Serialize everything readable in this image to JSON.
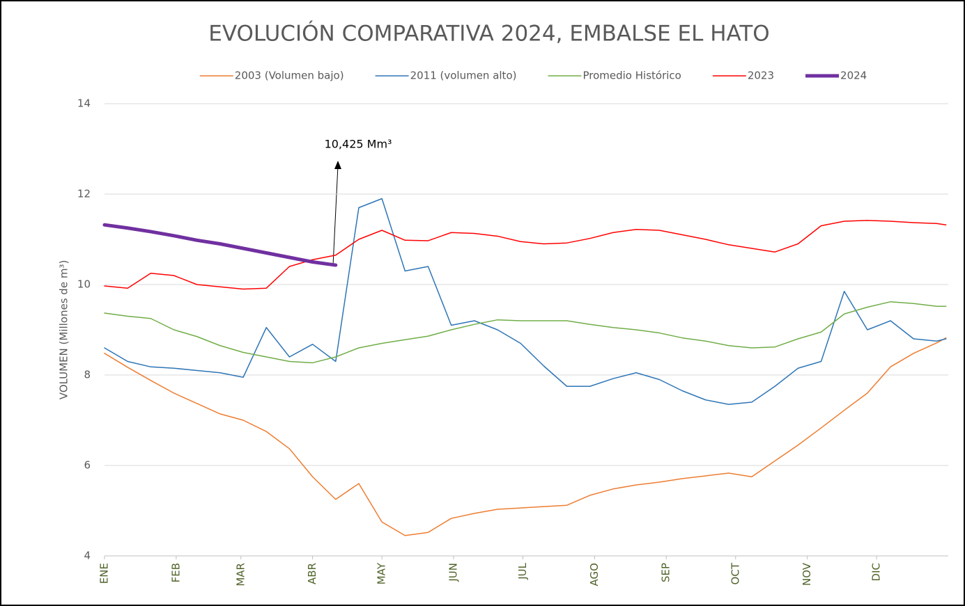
{
  "chart_data": {
    "type": "line",
    "title": "EVOLUCIÓN COMPARATIVA 2024, EMBALSE EL HATO",
    "y_label": "VOLUMEN (Millones de m³)",
    "annotation": "10,425 Mm³",
    "legend": "top",
    "grid": true,
    "xlim": [
      1,
      366
    ],
    "ylim": [
      4,
      14
    ],
    "yticks": [
      4,
      6,
      8,
      10,
      12,
      14
    ],
    "xticks": [
      {
        "value": 1,
        "label": "ENE"
      },
      {
        "value": 32,
        "label": "FEB"
      },
      {
        "value": 60,
        "label": "MAR"
      },
      {
        "value": 91,
        "label": "ABR"
      },
      {
        "value": 121,
        "label": "MAY"
      },
      {
        "value": 152,
        "label": "JUN"
      },
      {
        "value": 182,
        "label": "JUL"
      },
      {
        "value": 213,
        "label": "AGO"
      },
      {
        "value": 244,
        "label": "SEP"
      },
      {
        "value": 274,
        "label": "OCT"
      },
      {
        "value": 305,
        "label": "NOV"
      },
      {
        "value": 335,
        "label": "DIC"
      }
    ],
    "x": [
      1,
      11,
      21,
      31,
      41,
      51,
      61,
      71,
      81,
      91,
      101,
      111,
      121,
      131,
      141,
      151,
      161,
      171,
      181,
      191,
      201,
      211,
      221,
      231,
      241,
      251,
      261,
      271,
      281,
      291,
      301,
      311,
      321,
      331,
      341,
      351,
      361,
      365
    ],
    "series": [
      {
        "name": "2003 (Volumen bajo)",
        "color": "#ed7d31",
        "line_width": 1.5,
        "values": [
          8.48,
          8.17,
          7.88,
          7.6,
          7.37,
          7.14,
          7.0,
          6.75,
          6.37,
          5.75,
          5.25,
          5.6,
          4.75,
          4.45,
          4.52,
          4.83,
          4.94,
          5.03,
          5.06,
          5.09,
          5.12,
          5.34,
          5.48,
          5.57,
          5.63,
          5.71,
          5.77,
          5.83,
          5.75,
          6.1,
          6.45,
          6.83,
          7.22,
          7.6,
          8.18,
          8.48,
          8.71,
          8.82
        ]
      },
      {
        "name": "2011 (volumen alto)",
        "color": "#2e75b6",
        "line_width": 1.5,
        "values": [
          8.6,
          8.3,
          8.18,
          8.15,
          8.1,
          8.05,
          7.95,
          9.05,
          8.4,
          8.68,
          8.3,
          11.7,
          11.9,
          10.3,
          10.4,
          9.1,
          9.2,
          9.0,
          8.7,
          8.2,
          7.75,
          7.75,
          7.92,
          8.05,
          7.9,
          7.65,
          7.45,
          7.35,
          7.4,
          7.75,
          8.15,
          8.3,
          9.85,
          9.0,
          9.2,
          8.8,
          8.75,
          8.8
        ]
      },
      {
        "name": "Promedio Histórico",
        "color": "#70ad47",
        "line_width": 1.5,
        "values": [
          9.37,
          9.3,
          9.25,
          9.0,
          8.85,
          8.65,
          8.5,
          8.4,
          8.3,
          8.27,
          8.4,
          8.6,
          8.7,
          8.78,
          8.86,
          9.0,
          9.12,
          9.22,
          9.2,
          9.2,
          9.2,
          9.12,
          9.05,
          9.0,
          8.93,
          8.82,
          8.75,
          8.65,
          8.6,
          8.62,
          8.8,
          8.95,
          9.35,
          9.5,
          9.62,
          9.58,
          9.52,
          9.52
        ]
      },
      {
        "name": "2023",
        "color": "#ff0000",
        "line_width": 1.5,
        "values": [
          9.97,
          9.92,
          10.25,
          10.2,
          10.0,
          9.95,
          9.9,
          9.92,
          10.4,
          10.55,
          10.65,
          11.0,
          11.2,
          10.98,
          10.97,
          11.15,
          11.13,
          11.07,
          10.95,
          10.9,
          10.92,
          11.02,
          11.15,
          11.22,
          11.2,
          11.1,
          11.0,
          10.88,
          10.8,
          10.72,
          10.9,
          11.3,
          11.4,
          11.42,
          11.4,
          11.37,
          11.35,
          11.32
        ]
      },
      {
        "name": "2024",
        "color": "#7030a0",
        "line_width": 5,
        "values": [
          11.32,
          11.25,
          11.17,
          11.08,
          10.98,
          10.9,
          10.8,
          10.7,
          10.6,
          10.5,
          10.43,
          null,
          null,
          null,
          null,
          null,
          null,
          null,
          null,
          null,
          null,
          null,
          null,
          null,
          null,
          null,
          null,
          null,
          null,
          null,
          null,
          null,
          null,
          null,
          null,
          null,
          null,
          null
        ]
      }
    ]
  }
}
